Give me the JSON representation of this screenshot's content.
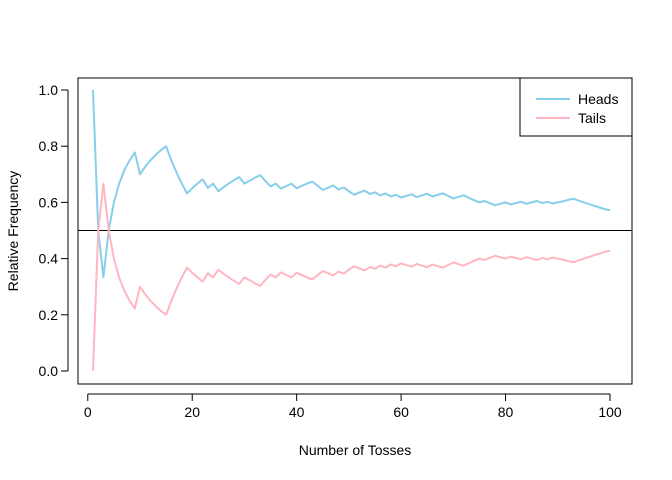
{
  "chart_data": {
    "type": "line",
    "title": "",
    "xlabel": "Number of Tosses",
    "ylabel": "Relative Frequency",
    "xlim": [
      1,
      100
    ],
    "ylim": [
      0,
      1
    ],
    "x_ticks": [
      "0",
      "20",
      "40",
      "60",
      "80",
      "100"
    ],
    "y_ticks": [
      "0.0",
      "0.2",
      "0.4",
      "0.6",
      "0.8",
      "1.0"
    ],
    "reference_line": {
      "y": 0.5,
      "color": "#000000"
    },
    "legend": {
      "position": "top-right"
    },
    "series": [
      {
        "name": "Heads",
        "color": "#87ceeb",
        "points": [
          [
            1,
            1.0
          ],
          [
            2,
            0.5
          ],
          [
            3,
            0.333
          ],
          [
            4,
            0.5
          ],
          [
            5,
            0.6
          ],
          [
            6,
            0.667
          ],
          [
            7,
            0.714
          ],
          [
            8,
            0.75
          ],
          [
            9,
            0.778
          ],
          [
            10,
            0.7
          ],
          [
            11,
            0.727
          ],
          [
            12,
            0.75
          ],
          [
            13,
            0.769
          ],
          [
            14,
            0.786
          ],
          [
            15,
            0.8
          ],
          [
            16,
            0.75
          ],
          [
            17,
            0.706
          ],
          [
            18,
            0.667
          ],
          [
            19,
            0.632
          ],
          [
            20,
            0.65
          ],
          [
            21,
            0.667
          ],
          [
            22,
            0.682
          ],
          [
            23,
            0.652
          ],
          [
            24,
            0.667
          ],
          [
            25,
            0.64
          ],
          [
            26,
            0.654
          ],
          [
            27,
            0.667
          ],
          [
            28,
            0.679
          ],
          [
            29,
            0.69
          ],
          [
            30,
            0.667
          ],
          [
            31,
            0.677
          ],
          [
            32,
            0.688
          ],
          [
            33,
            0.697
          ],
          [
            34,
            0.676
          ],
          [
            35,
            0.657
          ],
          [
            36,
            0.667
          ],
          [
            37,
            0.649
          ],
          [
            38,
            0.658
          ],
          [
            39,
            0.667
          ],
          [
            40,
            0.65
          ],
          [
            41,
            0.659
          ],
          [
            42,
            0.667
          ],
          [
            43,
            0.674
          ],
          [
            44,
            0.659
          ],
          [
            45,
            0.644
          ],
          [
            46,
            0.652
          ],
          [
            47,
            0.66
          ],
          [
            48,
            0.646
          ],
          [
            49,
            0.653
          ],
          [
            50,
            0.64
          ],
          [
            51,
            0.627
          ],
          [
            52,
            0.635
          ],
          [
            53,
            0.642
          ],
          [
            54,
            0.63
          ],
          [
            55,
            0.636
          ],
          [
            56,
            0.625
          ],
          [
            57,
            0.632
          ],
          [
            58,
            0.621
          ],
          [
            59,
            0.627
          ],
          [
            60,
            0.617
          ],
          [
            61,
            0.623
          ],
          [
            62,
            0.629
          ],
          [
            63,
            0.619
          ],
          [
            64,
            0.625
          ],
          [
            65,
            0.631
          ],
          [
            66,
            0.621
          ],
          [
            67,
            0.627
          ],
          [
            68,
            0.632
          ],
          [
            69,
            0.623
          ],
          [
            70,
            0.614
          ],
          [
            71,
            0.62
          ],
          [
            72,
            0.625
          ],
          [
            73,
            0.616
          ],
          [
            74,
            0.608
          ],
          [
            75,
            0.6
          ],
          [
            76,
            0.605
          ],
          [
            77,
            0.597
          ],
          [
            78,
            0.59
          ],
          [
            79,
            0.595
          ],
          [
            80,
            0.6
          ],
          [
            81,
            0.593
          ],
          [
            82,
            0.598
          ],
          [
            83,
            0.602
          ],
          [
            84,
            0.595
          ],
          [
            85,
            0.6
          ],
          [
            86,
            0.605
          ],
          [
            87,
            0.598
          ],
          [
            88,
            0.602
          ],
          [
            89,
            0.596
          ],
          [
            90,
            0.6
          ],
          [
            91,
            0.604
          ],
          [
            92,
            0.609
          ],
          [
            93,
            0.613
          ],
          [
            94,
            0.606
          ],
          [
            95,
            0.6
          ],
          [
            96,
            0.594
          ],
          [
            97,
            0.588
          ],
          [
            98,
            0.582
          ],
          [
            99,
            0.576
          ],
          [
            100,
            0.572
          ]
        ]
      },
      {
        "name": "Tails",
        "color": "#ffb6c1",
        "points": [
          [
            1,
            0.0
          ],
          [
            2,
            0.5
          ],
          [
            3,
            0.667
          ],
          [
            4,
            0.5
          ],
          [
            5,
            0.4
          ],
          [
            6,
            0.333
          ],
          [
            7,
            0.286
          ],
          [
            8,
            0.25
          ],
          [
            9,
            0.222
          ],
          [
            10,
            0.3
          ],
          [
            11,
            0.273
          ],
          [
            12,
            0.25
          ],
          [
            13,
            0.231
          ],
          [
            14,
            0.214
          ],
          [
            15,
            0.2
          ],
          [
            16,
            0.25
          ],
          [
            17,
            0.294
          ],
          [
            18,
            0.333
          ],
          [
            19,
            0.368
          ],
          [
            20,
            0.35
          ],
          [
            21,
            0.333
          ],
          [
            22,
            0.318
          ],
          [
            23,
            0.348
          ],
          [
            24,
            0.333
          ],
          [
            25,
            0.36
          ],
          [
            26,
            0.346
          ],
          [
            27,
            0.333
          ],
          [
            28,
            0.321
          ],
          [
            29,
            0.31
          ],
          [
            30,
            0.333
          ],
          [
            31,
            0.323
          ],
          [
            32,
            0.312
          ],
          [
            33,
            0.303
          ],
          [
            34,
            0.324
          ],
          [
            35,
            0.343
          ],
          [
            36,
            0.333
          ],
          [
            37,
            0.351
          ],
          [
            38,
            0.342
          ],
          [
            39,
            0.333
          ],
          [
            40,
            0.35
          ],
          [
            41,
            0.341
          ],
          [
            42,
            0.333
          ],
          [
            43,
            0.326
          ],
          [
            44,
            0.341
          ],
          [
            45,
            0.356
          ],
          [
            46,
            0.348
          ],
          [
            47,
            0.34
          ],
          [
            48,
            0.354
          ],
          [
            49,
            0.347
          ],
          [
            50,
            0.36
          ],
          [
            51,
            0.373
          ],
          [
            52,
            0.365
          ],
          [
            53,
            0.358
          ],
          [
            54,
            0.37
          ],
          [
            55,
            0.364
          ],
          [
            56,
            0.375
          ],
          [
            57,
            0.368
          ],
          [
            58,
            0.379
          ],
          [
            59,
            0.373
          ],
          [
            60,
            0.383
          ],
          [
            61,
            0.377
          ],
          [
            62,
            0.371
          ],
          [
            63,
            0.381
          ],
          [
            64,
            0.375
          ],
          [
            65,
            0.369
          ],
          [
            66,
            0.379
          ],
          [
            67,
            0.373
          ],
          [
            68,
            0.368
          ],
          [
            69,
            0.377
          ],
          [
            70,
            0.386
          ],
          [
            71,
            0.38
          ],
          [
            72,
            0.375
          ],
          [
            73,
            0.384
          ],
          [
            74,
            0.392
          ],
          [
            75,
            0.4
          ],
          [
            76,
            0.395
          ],
          [
            77,
            0.403
          ],
          [
            78,
            0.41
          ],
          [
            79,
            0.405
          ],
          [
            80,
            0.4
          ],
          [
            81,
            0.407
          ],
          [
            82,
            0.402
          ],
          [
            83,
            0.398
          ],
          [
            84,
            0.405
          ],
          [
            85,
            0.4
          ],
          [
            86,
            0.395
          ],
          [
            87,
            0.402
          ],
          [
            88,
            0.398
          ],
          [
            89,
            0.404
          ],
          [
            90,
            0.4
          ],
          [
            91,
            0.396
          ],
          [
            92,
            0.391
          ],
          [
            93,
            0.387
          ],
          [
            94,
            0.394
          ],
          [
            95,
            0.4
          ],
          [
            96,
            0.406
          ],
          [
            97,
            0.412
          ],
          [
            98,
            0.418
          ],
          [
            99,
            0.424
          ],
          [
            100,
            0.428
          ]
        ]
      }
    ]
  }
}
